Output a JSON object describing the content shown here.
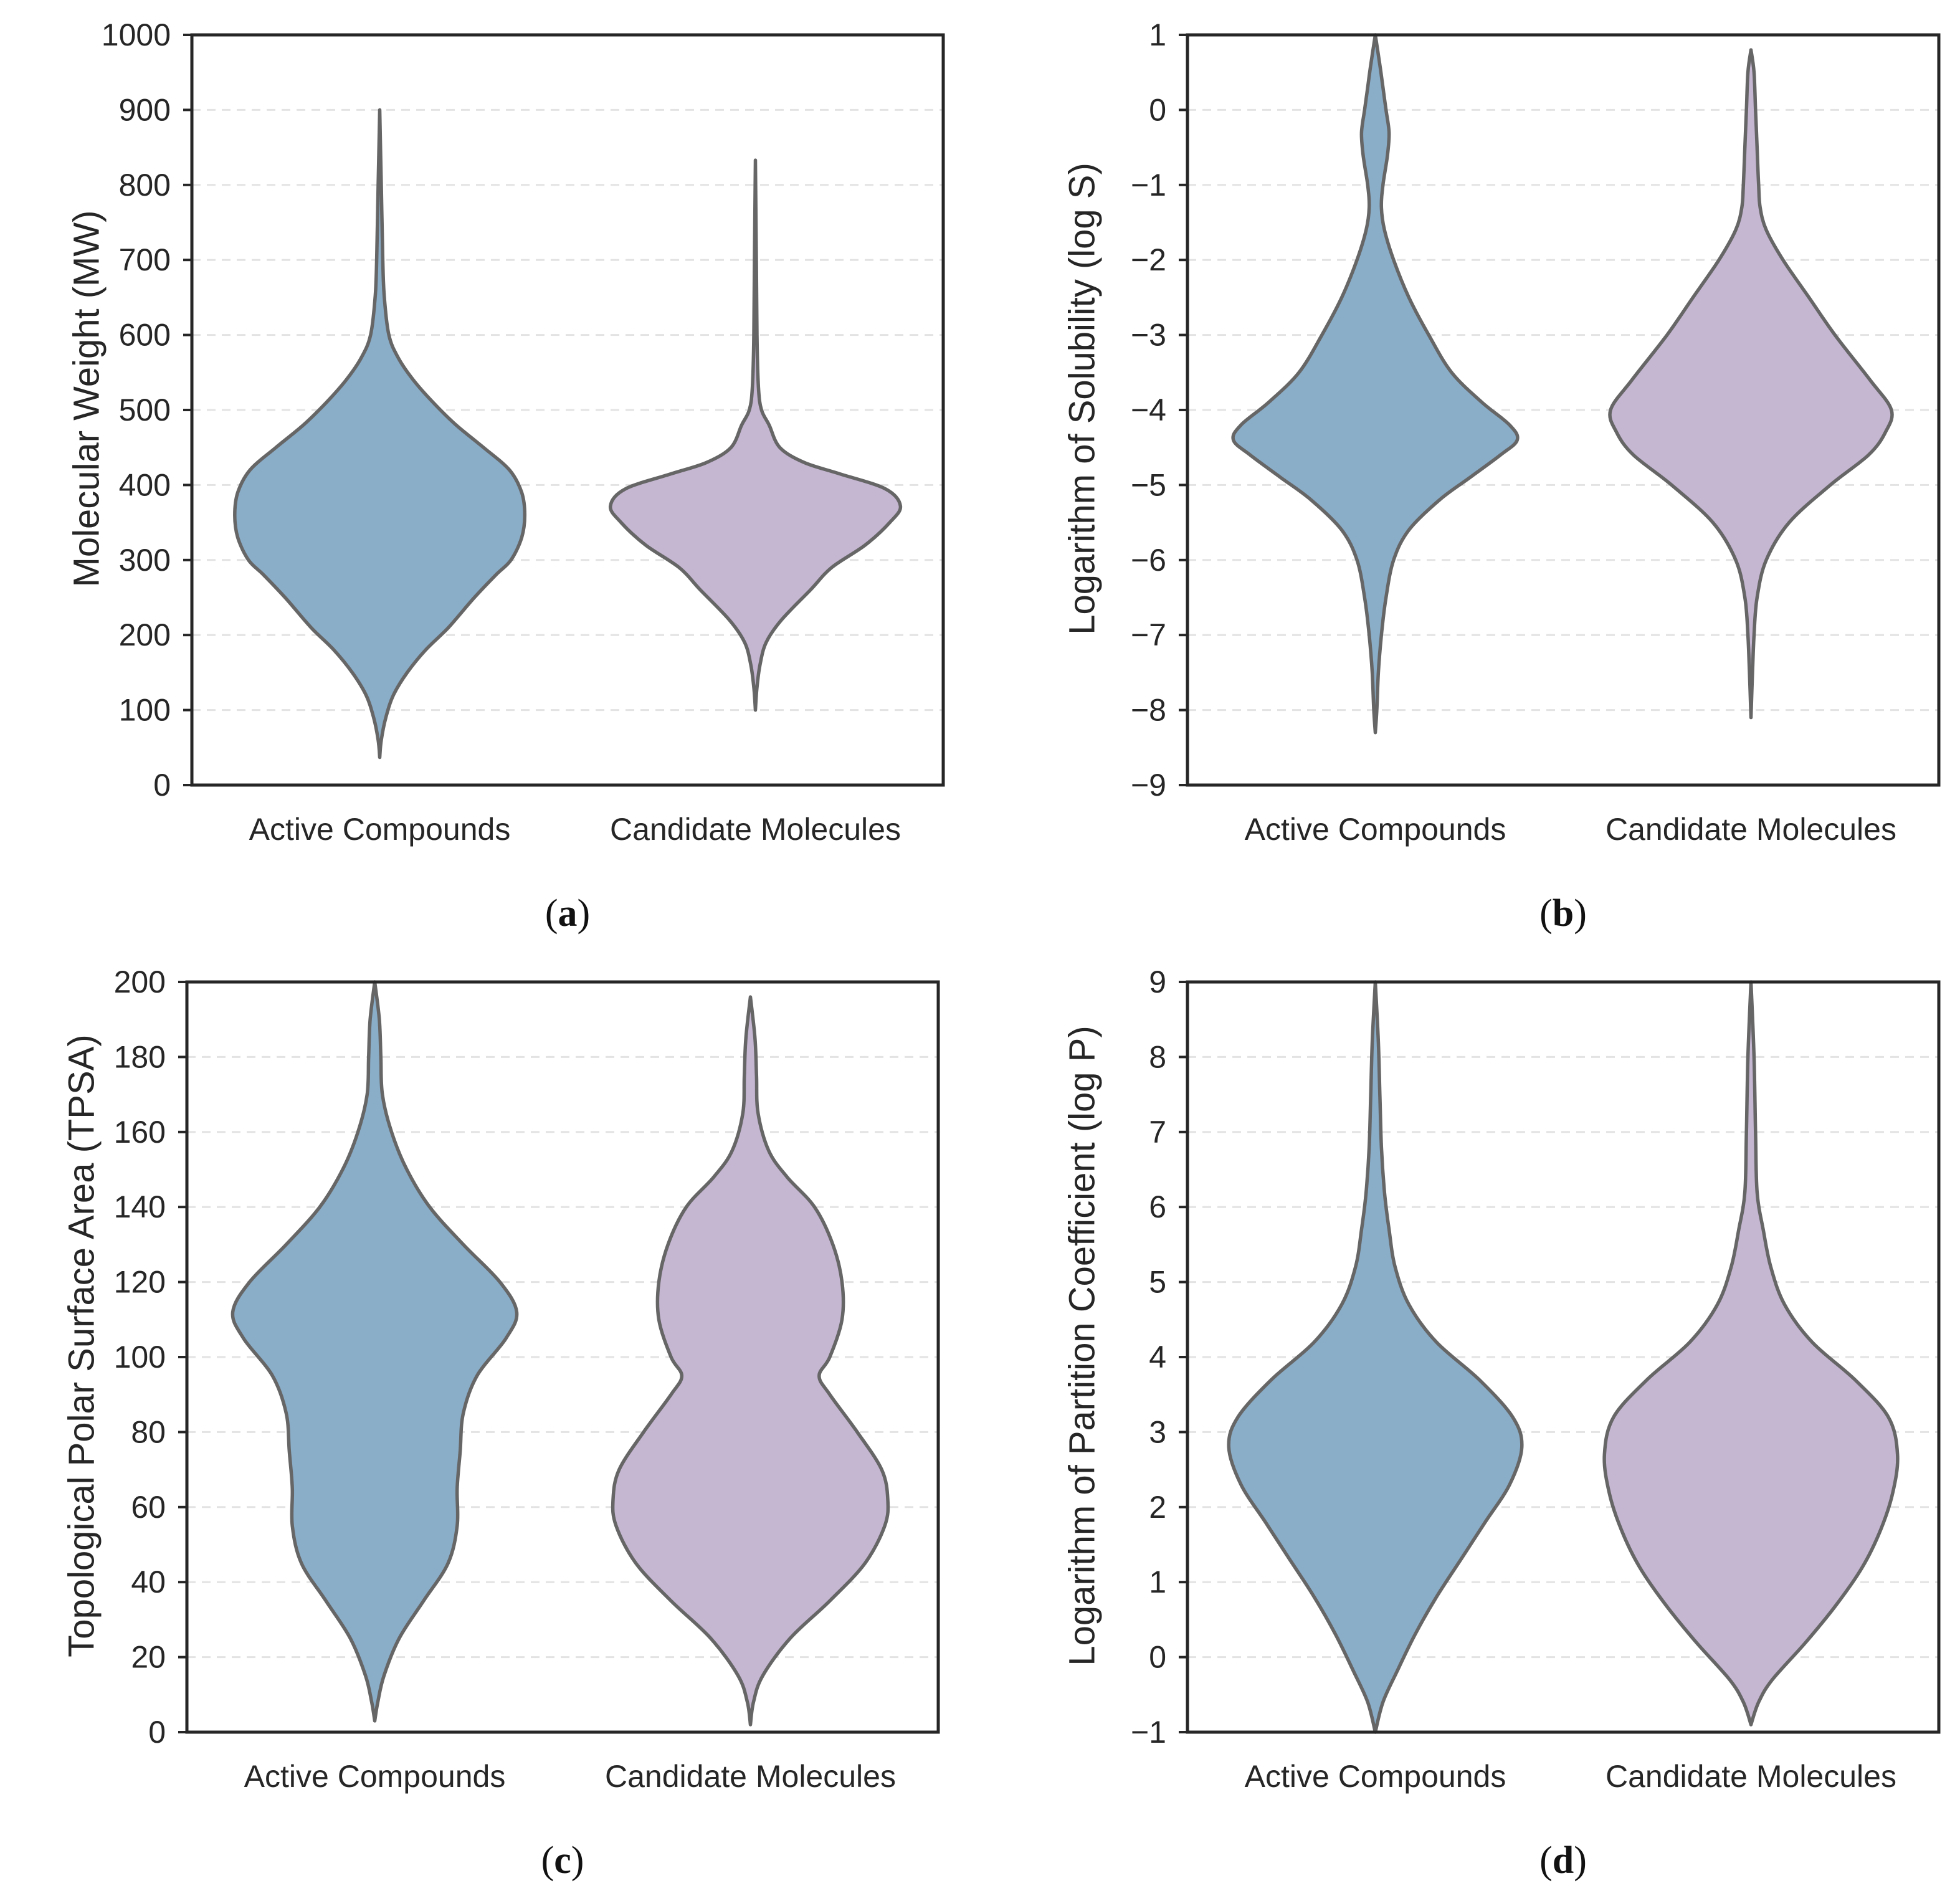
{
  "colors": {
    "active": "#8aadc8",
    "candidate": "#c5b6d2",
    "outline": "#666666"
  },
  "chart_data": [
    {
      "type": "violin",
      "panel": "a",
      "ylabel": "Molecular Weight (MW)",
      "ylim": [
        0,
        1000
      ],
      "yticks": [
        "0",
        "100",
        "200",
        "300",
        "400",
        "500",
        "600",
        "700",
        "800",
        "900",
        "1000"
      ],
      "categories": [
        "Active Compounds",
        "Candidate Molecules"
      ],
      "series": [
        {
          "name": "Active Compounds",
          "color_key": "active",
          "profile": [
            [
              37,
              0
            ],
            [
              60,
              0.01
            ],
            [
              90,
              0.04
            ],
            [
              120,
              0.09
            ],
            [
              150,
              0.18
            ],
            [
              180,
              0.3
            ],
            [
              210,
              0.45
            ],
            [
              250,
              0.62
            ],
            [
              280,
              0.76
            ],
            [
              300,
              0.86
            ],
            [
              330,
              0.93
            ],
            [
              360,
              0.95
            ],
            [
              390,
              0.93
            ],
            [
              420,
              0.85
            ],
            [
              450,
              0.68
            ],
            [
              480,
              0.5
            ],
            [
              510,
              0.35
            ],
            [
              540,
              0.22
            ],
            [
              570,
              0.12
            ],
            [
              600,
              0.06
            ],
            [
              650,
              0.03
            ],
            [
              700,
              0.02
            ],
            [
              800,
              0.01
            ],
            [
              900,
              0
            ]
          ]
        },
        {
          "name": "Candidate Molecules",
          "color_key": "candidate",
          "profile": [
            [
              100,
              0
            ],
            [
              130,
              0.01
            ],
            [
              160,
              0.03
            ],
            [
              190,
              0.07
            ],
            [
              220,
              0.17
            ],
            [
              260,
              0.36
            ],
            [
              290,
              0.5
            ],
            [
              320,
              0.72
            ],
            [
              350,
              0.88
            ],
            [
              372,
              0.95
            ],
            [
              395,
              0.85
            ],
            [
              415,
              0.55
            ],
            [
              430,
              0.32
            ],
            [
              450,
              0.16
            ],
            [
              480,
              0.09
            ],
            [
              500,
              0.04
            ],
            [
              530,
              0.02
            ],
            [
              600,
              0.01
            ],
            [
              700,
              0.006
            ],
            [
              833,
              0
            ]
          ]
        }
      ]
    },
    {
      "type": "violin",
      "panel": "b",
      "ylabel": "Logarithm of Solubility (log S)",
      "ylim": [
        -9,
        1
      ],
      "yticks": [
        "−9",
        "−8",
        "−7",
        "−6",
        "−5",
        "−4",
        "−3",
        "−2",
        "−1",
        "0",
        "1"
      ],
      "categories": [
        "Active Compounds",
        "Candidate Molecules"
      ],
      "series": [
        {
          "name": "Active Compounds",
          "color_key": "active",
          "profile": [
            [
              -8.3,
              0
            ],
            [
              -8.0,
              0.01
            ],
            [
              -7.5,
              0.02
            ],
            [
              -7.0,
              0.04
            ],
            [
              -6.5,
              0.07
            ],
            [
              -6.0,
              0.12
            ],
            [
              -5.6,
              0.22
            ],
            [
              -5.2,
              0.42
            ],
            [
              -4.9,
              0.62
            ],
            [
              -4.6,
              0.82
            ],
            [
              -4.4,
              0.93
            ],
            [
              -4.2,
              0.88
            ],
            [
              -3.9,
              0.7
            ],
            [
              -3.5,
              0.5
            ],
            [
              -3.0,
              0.35
            ],
            [
              -2.5,
              0.22
            ],
            [
              -2.0,
              0.12
            ],
            [
              -1.6,
              0.06
            ],
            [
              -1.3,
              0.04
            ],
            [
              -1.0,
              0.05
            ],
            [
              -0.6,
              0.08
            ],
            [
              -0.3,
              0.09
            ],
            [
              0.0,
              0.07
            ],
            [
              0.3,
              0.05
            ],
            [
              0.6,
              0.03
            ],
            [
              1.0,
              0
            ]
          ]
        },
        {
          "name": "Candidate Molecules",
          "color_key": "candidate",
          "profile": [
            [
              -8.1,
              0
            ],
            [
              -7.5,
              0.01
            ],
            [
              -7.0,
              0.02
            ],
            [
              -6.5,
              0.04
            ],
            [
              -6.0,
              0.1
            ],
            [
              -5.5,
              0.25
            ],
            [
              -5.0,
              0.52
            ],
            [
              -4.6,
              0.77
            ],
            [
              -4.3,
              0.88
            ],
            [
              -4.0,
              0.92
            ],
            [
              -3.6,
              0.78
            ],
            [
              -3.0,
              0.55
            ],
            [
              -2.5,
              0.38
            ],
            [
              -2.0,
              0.21
            ],
            [
              -1.6,
              0.1
            ],
            [
              -1.3,
              0.06
            ],
            [
              -1.0,
              0.05
            ],
            [
              -0.5,
              0.04
            ],
            [
              0.0,
              0.03
            ],
            [
              0.5,
              0.02
            ],
            [
              0.8,
              0
            ]
          ]
        }
      ]
    },
    {
      "type": "violin",
      "panel": "c",
      "ylabel": "Topological Polar Surface Area (TPSA)",
      "ylim": [
        0,
        200
      ],
      "yticks": [
        "0",
        "20",
        "40",
        "60",
        "80",
        "100",
        "120",
        "140",
        "160",
        "180",
        "200"
      ],
      "categories": [
        "Active Compounds",
        "Candidate Molecules"
      ],
      "series": [
        {
          "name": "Active Compounds",
          "color_key": "active",
          "profile": [
            [
              3,
              0
            ],
            [
              8,
              0.02
            ],
            [
              15,
              0.06
            ],
            [
              25,
              0.16
            ],
            [
              35,
              0.32
            ],
            [
              45,
              0.48
            ],
            [
              55,
              0.54
            ],
            [
              65,
              0.54
            ],
            [
              75,
              0.56
            ],
            [
              85,
              0.58
            ],
            [
              95,
              0.67
            ],
            [
              105,
              0.86
            ],
            [
              112,
              0.93
            ],
            [
              120,
              0.82
            ],
            [
              130,
              0.58
            ],
            [
              140,
              0.36
            ],
            [
              150,
              0.21
            ],
            [
              160,
              0.11
            ],
            [
              170,
              0.05
            ],
            [
              180,
              0.04
            ],
            [
              190,
              0.03
            ],
            [
              200,
              0
            ]
          ]
        },
        {
          "name": "Candidate Molecules",
          "color_key": "candidate",
          "profile": [
            [
              2,
              0
            ],
            [
              8,
              0.02
            ],
            [
              15,
              0.08
            ],
            [
              25,
              0.26
            ],
            [
              35,
              0.52
            ],
            [
              45,
              0.75
            ],
            [
              55,
              0.88
            ],
            [
              62,
              0.9
            ],
            [
              70,
              0.86
            ],
            [
              80,
              0.7
            ],
            [
              90,
              0.52
            ],
            [
              95,
              0.45
            ],
            [
              100,
              0.52
            ],
            [
              110,
              0.6
            ],
            [
              120,
              0.6
            ],
            [
              130,
              0.54
            ],
            [
              140,
              0.42
            ],
            [
              148,
              0.24
            ],
            [
              155,
              0.12
            ],
            [
              165,
              0.05
            ],
            [
              175,
              0.04
            ],
            [
              185,
              0.03
            ],
            [
              196,
              0
            ]
          ]
        }
      ]
    },
    {
      "type": "violin",
      "panel": "d",
      "ylabel": "Logarithm of Partition Coefficient (log P)",
      "ylim": [
        -1,
        9
      ],
      "yticks": [
        "−1",
        "0",
        "1",
        "2",
        "3",
        "4",
        "5",
        "6",
        "7",
        "8",
        "9"
      ],
      "categories": [
        "Active Compounds",
        "Candidate Molecules"
      ],
      "series": [
        {
          "name": "Active Compounds",
          "color_key": "active",
          "profile": [
            [
              -1.0,
              0
            ],
            [
              -0.6,
              0.05
            ],
            [
              -0.2,
              0.14
            ],
            [
              0.3,
              0.26
            ],
            [
              0.8,
              0.4
            ],
            [
              1.3,
              0.56
            ],
            [
              1.8,
              0.72
            ],
            [
              2.3,
              0.88
            ],
            [
              2.8,
              0.96
            ],
            [
              3.2,
              0.9
            ],
            [
              3.7,
              0.68
            ],
            [
              4.2,
              0.4
            ],
            [
              4.7,
              0.22
            ],
            [
              5.2,
              0.13
            ],
            [
              5.7,
              0.09
            ],
            [
              6.2,
              0.06
            ],
            [
              6.8,
              0.04
            ],
            [
              7.5,
              0.03
            ],
            [
              8.2,
              0.02
            ],
            [
              9.0,
              0
            ]
          ]
        },
        {
          "name": "Candidate Molecules",
          "color_key": "candidate",
          "profile": [
            [
              -0.9,
              0
            ],
            [
              -0.6,
              0.05
            ],
            [
              -0.3,
              0.14
            ],
            [
              0.2,
              0.36
            ],
            [
              0.7,
              0.56
            ],
            [
              1.2,
              0.73
            ],
            [
              1.7,
              0.85
            ],
            [
              2.2,
              0.93
            ],
            [
              2.7,
              0.96
            ],
            [
              3.2,
              0.9
            ],
            [
              3.7,
              0.68
            ],
            [
              4.2,
              0.4
            ],
            [
              4.7,
              0.22
            ],
            [
              5.2,
              0.13
            ],
            [
              5.7,
              0.08
            ],
            [
              6.2,
              0.04
            ],
            [
              7.0,
              0.03
            ],
            [
              8.0,
              0.02
            ],
            [
              9.0,
              0
            ]
          ]
        }
      ]
    }
  ]
}
